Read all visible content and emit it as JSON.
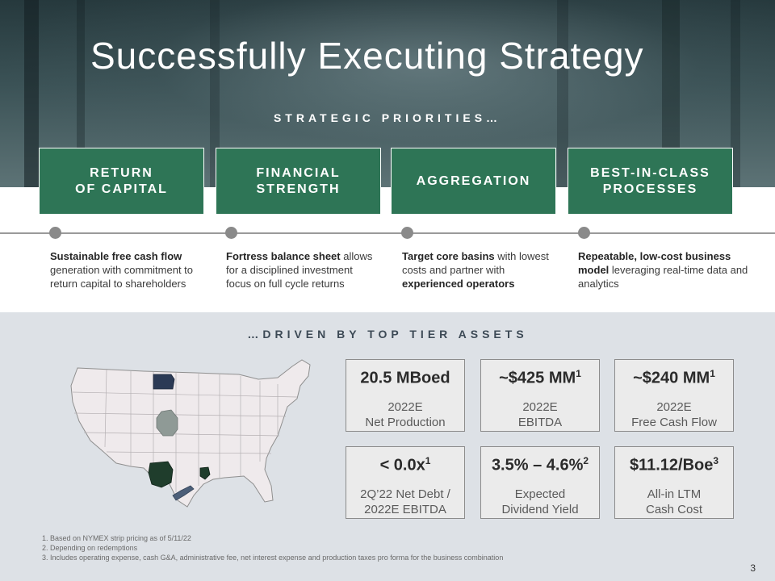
{
  "title": "Successfully Executing Strategy",
  "priorities_heading": "STRATEGIC PRIORITIES…",
  "priorities": [
    {
      "title": "RETURN\nOF CAPITAL",
      "bold": "Sustainable free cash flow",
      "text": " generation with commitment to return capital to shareholders"
    },
    {
      "title": "FINANCIAL\nSTRENGTH",
      "bold": "Fortress balance sheet",
      "text": " allows for a disciplined investment focus on full cycle returns"
    },
    {
      "title": "AGGREGATION",
      "bold": "Target core basins",
      "text": " with lowest costs and partner with ",
      "bold2": "experienced operators"
    },
    {
      "title": "BEST-IN-CLASS\nPROCESSES",
      "bold": "Repeatable, low-cost business model",
      "text": " leveraging real-time data and analytics"
    }
  ],
  "assets_heading": "…DRIVEN BY TOP TIER ASSETS",
  "metrics": [
    {
      "value": "20.5 MBoed",
      "sup": "",
      "label": "2022E\nNet Production"
    },
    {
      "value": "~$425 MM",
      "sup": "1",
      "label": "2022E\nEBITDA"
    },
    {
      "value": "~$240 MM",
      "sup": "1",
      "label": "2022E\nFree Cash Flow"
    },
    {
      "value": "< 0.0x",
      "sup": "1",
      "label": "2Q’22 Net Debt /\n2022E EBITDA"
    },
    {
      "value": "3.5% – 4.6%",
      "sup": "2",
      "label": "Expected\nDividend Yield"
    },
    {
      "value": "$11.12/Boe",
      "sup": "3",
      "label": "All-in LTM\nCash Cost"
    }
  ],
  "footnotes": [
    "Based on NYMEX strip pricing as of 5/11/22",
    "Depending on redemptions",
    "Includes operating expense, cash G&A, administrative fee, net interest expense and production taxes pro forma for the business combination"
  ],
  "page_number": "3",
  "colors": {
    "accent_green": "#2e7556",
    "lower_bg": "#dde1e6",
    "basin_dark_navy": "#2b3a55",
    "basin_dark_green": "#1f3d2c",
    "basin_gray": "#8f9a96",
    "basin_slate": "#4c5f79"
  }
}
